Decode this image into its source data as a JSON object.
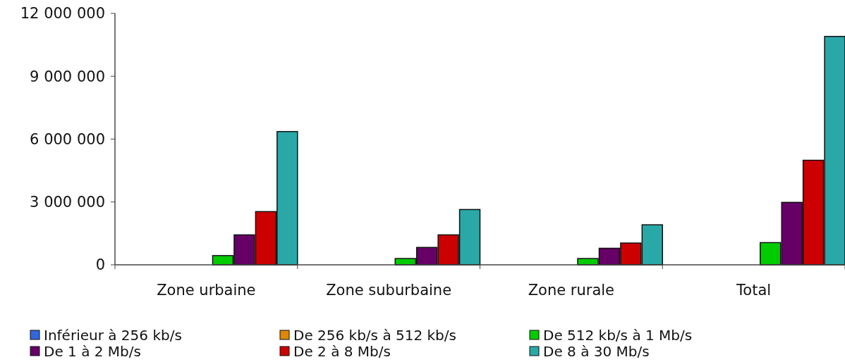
{
  "chart_data": {
    "type": "bar",
    "categories": [
      "Zone urbaine",
      "Zone suburbaine",
      "Zone rurale",
      "Total"
    ],
    "series": [
      {
        "name": "Inférieur à 256 kb/s",
        "color": "#3366dd",
        "values": [
          0,
          0,
          0,
          0
        ]
      },
      {
        "name": "De 256 kb/s à 512 kb/s",
        "color": "#dd8800",
        "values": [
          0,
          0,
          0,
          0
        ]
      },
      {
        "name": "De 512 kb/s à 1 Mb/s",
        "color": "#00cc00",
        "values": [
          440000,
          300000,
          300000,
          1060000
        ]
      },
      {
        "name": "De 1 à 2 Mb/s",
        "color": "#660066",
        "values": [
          1430000,
          830000,
          790000,
          2980000
        ]
      },
      {
        "name": "De 2 à 8 Mb/s",
        "color": "#cc0000",
        "values": [
          2540000,
          1430000,
          1040000,
          4990000
        ]
      },
      {
        "name": "De 8 à 30 Mb/s",
        "color": "#2aa8a8",
        "values": [
          6360000,
          2640000,
          1910000,
          10900000
        ]
      }
    ],
    "ylim": [
      0,
      12000000
    ],
    "yticks": [
      {
        "value": 0,
        "label": "0"
      },
      {
        "value": 3000000,
        "label": "3 000 000"
      },
      {
        "value": 6000000,
        "label": "6 000 000"
      },
      {
        "value": 9000000,
        "label": "9 000 000"
      },
      {
        "value": 12000000,
        "label": "12 000 000"
      }
    ],
    "grid": false,
    "legend": "bottom"
  }
}
